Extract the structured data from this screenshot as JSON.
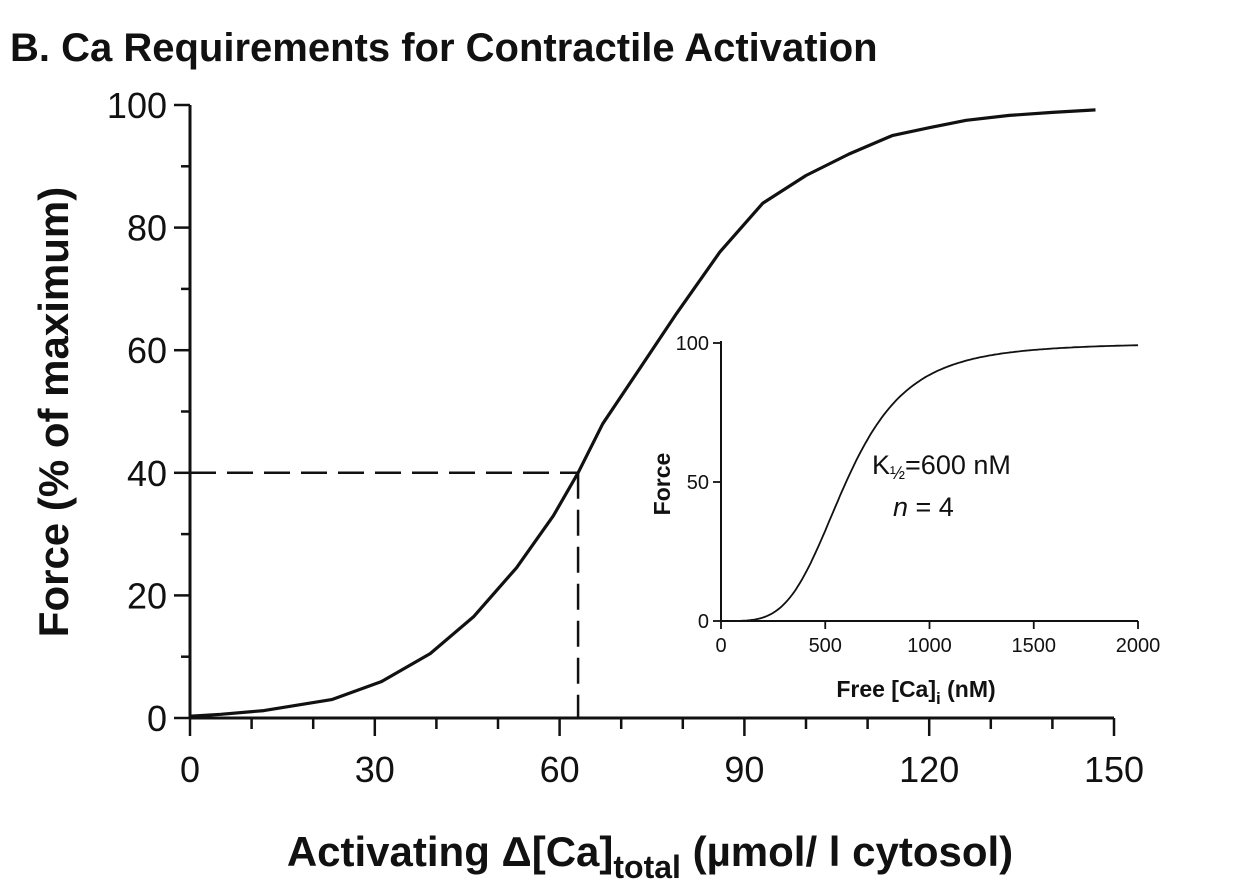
{
  "title": "B. Ca Requirements for Contractile Activation",
  "chart_data": [
    {
      "type": "line",
      "xlabel": {
        "prefix": "Activating Δ[",
        "main": "Ca]",
        "sub": "total",
        "suffix": " (µmol/ l cytosol)"
      },
      "ylabel": "Force (% of maximum)",
      "xlim": [
        0,
        150
      ],
      "ylim": [
        0,
        100
      ],
      "x_ticks": [
        0,
        30,
        60,
        90,
        120,
        150
      ],
      "y_ticks": [
        0,
        20,
        40,
        60,
        80,
        100
      ],
      "x_minor_step": 10,
      "y_minor_step": 10,
      "series": [
        {
          "x": [
            0,
            5,
            12,
            23,
            31,
            39,
            46,
            53,
            59,
            63,
            67,
            73,
            79,
            86,
            93,
            100,
            107,
            114,
            120,
            126,
            133,
            140,
            147
          ],
          "y": [
            0.3,
            0.6,
            1.2,
            3.0,
            5.9,
            10.5,
            16.5,
            24.5,
            33.0,
            40.0,
            48.0,
            57.0,
            66.0,
            76.0,
            84.0,
            88.5,
            92.0,
            95.0,
            96.3,
            97.5,
            98.3,
            98.8,
            99.2
          ]
        }
      ],
      "reference_lines": {
        "x": 63,
        "y": 40,
        "style": "dashed"
      }
    },
    {
      "type": "line",
      "xlabel": {
        "main": "Free [Ca]",
        "sub": "i",
        "suffix": "  (nM)"
      },
      "ylabel": "Force",
      "xlim": [
        0,
        2000
      ],
      "ylim": [
        0,
        100
      ],
      "x_ticks": [
        0,
        500,
        1000,
        1500,
        2000
      ],
      "y_ticks": [
        0,
        50,
        100
      ],
      "hill": {
        "K_half": 600,
        "n": 4
      },
      "annotations": [
        {
          "k": "K",
          "sub": "½",
          "rest": "=600 nM"
        },
        {
          "italic": "n",
          "rest": " = 4"
        }
      ]
    }
  ]
}
